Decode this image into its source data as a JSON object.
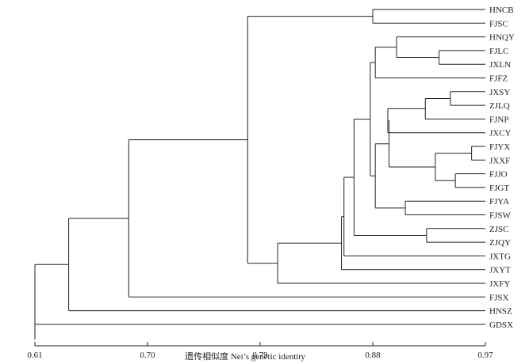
{
  "dendrogram": {
    "axis": {
      "label": "遗传相似度 Nei’s genetic identity",
      "min": 0.61,
      "max": 0.97,
      "ticks": [
        0.61,
        0.7,
        0.79,
        0.88,
        0.97
      ],
      "tick_labels": [
        "0.61",
        "0.70",
        "0.79",
        "0.88",
        "0.97"
      ]
    },
    "leaves": [
      "HNCB",
      "FJSC",
      "HNQY",
      "FJLC",
      "JXLN",
      "FJFZ",
      "JXSY",
      "ZJLQ",
      "FJNP",
      "JXCY",
      "FJYX",
      "JXXF",
      "FJJO",
      "FJGT",
      "FJYA",
      "FJSW",
      "ZJSC",
      "ZJQY",
      "JXTG",
      "JXYT",
      "JXFY",
      "FJSX",
      "HNSZ",
      "GDSX"
    ],
    "merges": [
      {
        "id": "c_hncb_fjsc",
        "left": "HNCB",
        "right": "FJSC",
        "similarity": 0.88
      },
      {
        "id": "c_fjlc_jxln",
        "left": "FJLC",
        "right": "JXLN",
        "similarity": 0.933
      },
      {
        "id": "c_hnqy",
        "left": "HNQY",
        "right": "c_fjlc_jxln",
        "similarity": 0.899
      },
      {
        "id": "c_fjfz",
        "left": "c_hnqy",
        "right": "FJFZ",
        "similarity": 0.882
      },
      {
        "id": "c_jxsy_zjlq",
        "left": "JXSY",
        "right": "ZJLQ",
        "similarity": 0.942
      },
      {
        "id": "c_fjnp",
        "left": "c_jxsy_zjlq",
        "right": "FJNP",
        "similarity": 0.922
      },
      {
        "id": "c_jxcy",
        "left": "c_fjnp",
        "right": "JXCY",
        "similarity": 0.892
      },
      {
        "id": "c_fjyx_jxxf",
        "left": "FJYX",
        "right": "JXXF",
        "similarity": 0.959
      },
      {
        "id": "c_fjjo_fjgt",
        "left": "FJJO",
        "right": "FJGT",
        "similarity": 0.946
      },
      {
        "id": "c_yx_jo",
        "left": "c_fjyx_jxxf",
        "right": "c_fjjo_fjgt",
        "similarity": 0.93
      },
      {
        "id": "c_jx_yx",
        "left": "c_jxcy",
        "right": "c_yx_jo",
        "similarity": 0.893
      },
      {
        "id": "c_fjya_fjsw",
        "left": "FJYA",
        "right": "FJSW",
        "similarity": 0.906
      },
      {
        "id": "c_sw",
        "left": "c_jx_yx",
        "right": "c_fjya_fjsw",
        "similarity": 0.882
      },
      {
        "id": "c_big",
        "left": "c_fjfz",
        "right": "c_sw",
        "similarity": 0.878
      },
      {
        "id": "c_zjsc_zjqy",
        "left": "ZJSC",
        "right": "ZJQY",
        "similarity": 0.923
      },
      {
        "id": "c_zj",
        "left": "c_big",
        "right": "c_zjsc_zjqy",
        "similarity": 0.865
      },
      {
        "id": "c_jxtg",
        "left": "c_zj",
        "right": "JXTG",
        "similarity": 0.857
      },
      {
        "id": "c_jxyt",
        "left": "c_jxtg",
        "right": "JXYT",
        "similarity": 0.855
      },
      {
        "id": "c_jxfy",
        "left": "c_jxyt",
        "right": "JXFY",
        "similarity": 0.804
      },
      {
        "id": "c_top",
        "left": "c_hncb_fjsc",
        "right": "c_jxfy",
        "similarity": 0.78
      },
      {
        "id": "c_fjsx",
        "left": "c_top",
        "right": "FJSX",
        "similarity": 0.685
      },
      {
        "id": "c_hnsz",
        "left": "c_fjsx",
        "right": "HNSZ",
        "similarity": 0.637
      },
      {
        "id": "c_root",
        "left": "c_hnsz",
        "right": "GDSX",
        "similarity": 0.61
      }
    ]
  }
}
